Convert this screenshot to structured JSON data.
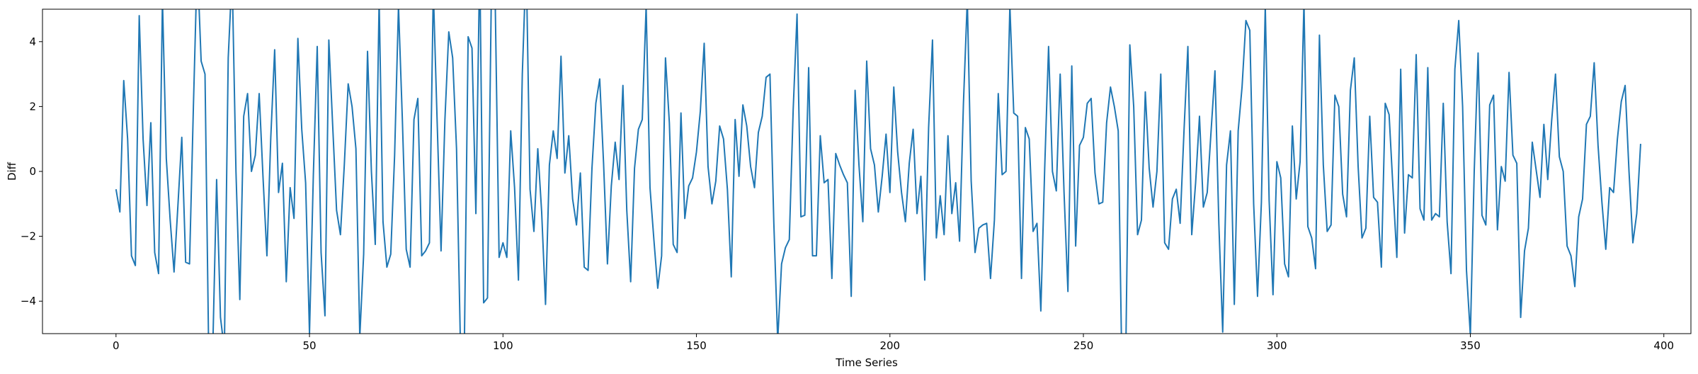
{
  "chart_data": {
    "type": "line",
    "title": "",
    "xlabel": "Time Series",
    "ylabel": "Diff",
    "xlim": [
      -19,
      407
    ],
    "ylim": [
      -5,
      5
    ],
    "xticks": [
      0,
      50,
      100,
      150,
      200,
      250,
      300,
      350,
      400
    ],
    "yticks": [
      -4,
      -2,
      0,
      2,
      4
    ],
    "grid": false,
    "series": [
      {
        "color": "#1f77b4",
        "x_start": 0,
        "x_step": 1,
        "values": [
          -0.55,
          -1.25,
          2.8,
          1.0,
          -2.6,
          -2.9,
          4.8,
          1.0,
          -1.05,
          1.5,
          -2.5,
          -3.15,
          5.3,
          0.4,
          -1.5,
          -3.1,
          -1.05,
          1.05,
          -2.8,
          -2.85,
          2.0,
          6.5,
          3.4,
          3.0,
          -6.0,
          -5.5,
          -0.25,
          -4.5,
          -5.5,
          3.5,
          6.1,
          0.0,
          -3.95,
          1.7,
          2.4,
          0.0,
          0.5,
          2.4,
          -0.2,
          -2.6,
          1.05,
          3.75,
          -0.65,
          0.25,
          -3.4,
          -0.5,
          -1.45,
          4.1,
          1.3,
          -0.35,
          -5.0,
          -0.1,
          3.85,
          -2.5,
          -4.45,
          4.05,
          1.4,
          -1.2,
          -1.95,
          0.2,
          2.7,
          2.0,
          0.7,
          -5.1,
          -2.55,
          3.7,
          0.0,
          -2.25,
          5.3,
          -1.55,
          -2.95,
          -2.55,
          0.5,
          5.1,
          1.6,
          -2.4,
          -2.95,
          1.6,
          2.25,
          -2.6,
          -2.45,
          -2.2,
          5.6,
          1.5,
          -2.45,
          1.6,
          4.3,
          3.5,
          0.7,
          -5.3,
          -5.6,
          4.15,
          3.8,
          -1.3,
          6.5,
          -4.05,
          -3.9,
          5.5,
          5.2,
          -2.65,
          -2.2,
          -2.65,
          1.25,
          -0.5,
          -3.35,
          3.0,
          6.5,
          -0.55,
          -1.85,
          0.7,
          -1.25,
          -4.1,
          0.2,
          1.25,
          0.4,
          3.55,
          -0.05,
          1.1,
          -0.85,
          -1.65,
          -0.05,
          -2.95,
          -3.05,
          0.1,
          2.1,
          2.85,
          0.25,
          -2.85,
          -0.45,
          0.9,
          -0.25,
          2.65,
          -1.2,
          -3.4,
          0.1,
          1.3,
          1.6,
          5.1,
          -0.5,
          -2.1,
          -3.6,
          -2.6,
          3.5,
          1.5,
          -2.25,
          -2.5,
          1.8,
          -1.45,
          -0.45,
          -0.2,
          0.6,
          1.85,
          3.95,
          0.15,
          -1.0,
          -0.3,
          1.4,
          1.0,
          -0.55,
          -3.25,
          1.6,
          -0.15,
          2.05,
          1.4,
          0.15,
          -0.5,
          1.2,
          1.7,
          2.9,
          3.0,
          -1.6,
          -5.2,
          -2.85,
          -2.35,
          -2.1,
          1.9,
          4.85,
          -1.4,
          -1.35,
          3.2,
          -2.6,
          -2.6,
          1.1,
          -0.35,
          -0.25,
          -3.3,
          0.55,
          0.2,
          -0.1,
          -0.35,
          -3.85,
          2.5,
          0.2,
          -1.55,
          3.4,
          0.7,
          0.2,
          -1.25,
          -0.15,
          1.15,
          -0.65,
          2.6,
          0.6,
          -0.65,
          -1.55,
          0.25,
          1.3,
          -1.3,
          -0.15,
          -3.35,
          1.35,
          4.05,
          -2.05,
          -0.75,
          -1.95,
          1.1,
          -1.3,
          -0.35,
          -2.15,
          2.1,
          5.3,
          -0.3,
          -2.5,
          -1.75,
          -1.65,
          -1.6,
          -3.3,
          -1.5,
          2.4,
          -0.1,
          0.0,
          5.1,
          1.8,
          1.7,
          -3.3,
          1.35,
          1.0,
          -1.85,
          -1.6,
          -4.3,
          0.1,
          3.85,
          0.0,
          -0.6,
          3.0,
          -0.65,
          -3.7,
          3.25,
          -2.3,
          0.8,
          1.05,
          2.1,
          2.25,
          -0.05,
          -1.0,
          -0.95,
          1.5,
          2.6,
          2.0,
          1.25,
          -6.5,
          -5.2,
          3.9,
          2.0,
          -1.95,
          -1.5,
          2.45,
          0.1,
          -1.1,
          0.0,
          3.0,
          -2.2,
          -2.4,
          -0.85,
          -0.55,
          -1.6,
          1.25,
          3.85,
          -1.95,
          -0.35,
          1.7,
          -1.1,
          -0.65,
          1.25,
          3.1,
          -1.6,
          -4.95,
          0.2,
          1.25,
          -4.1,
          1.25,
          2.6,
          4.65,
          4.35,
          -1.0,
          -3.85,
          -0.95,
          5.1,
          -0.9,
          -3.8,
          0.3,
          -0.2,
          -2.85,
          -3.25,
          1.4,
          -0.85,
          0.3,
          5.2,
          -1.7,
          -2.05,
          -3.0,
          4.2,
          0.2,
          -1.85,
          -1.65,
          2.35,
          2.0,
          -0.7,
          -1.4,
          2.5,
          3.5,
          0.15,
          -2.05,
          -1.75,
          1.7,
          -0.8,
          -0.95,
          -2.95,
          2.1,
          1.75,
          -0.5,
          -2.65,
          3.15,
          -1.9,
          -0.1,
          -0.2,
          3.6,
          -1.15,
          -1.5,
          3.2,
          -1.5,
          -1.3,
          -1.4,
          2.1,
          -1.55,
          -3.15,
          3.15,
          4.65,
          2.0,
          -3.05,
          -5.05,
          0.0,
          3.65,
          -1.35,
          -1.65,
          2.05,
          2.35,
          -1.8,
          0.15,
          -0.3,
          3.05,
          0.5,
          0.25,
          -4.5,
          -2.45,
          -1.75,
          0.9,
          0.05,
          -0.8,
          1.45,
          -0.25,
          1.55,
          3.0,
          0.45,
          0.0,
          -2.3,
          -2.6,
          -3.55,
          -1.4,
          -0.85,
          1.45,
          1.7,
          3.35,
          0.8,
          -0.95,
          -2.4,
          -0.5,
          -0.65,
          1.0,
          2.15,
          2.65,
          0.0,
          -2.2,
          -1.3,
          0.85
        ]
      }
    ]
  }
}
